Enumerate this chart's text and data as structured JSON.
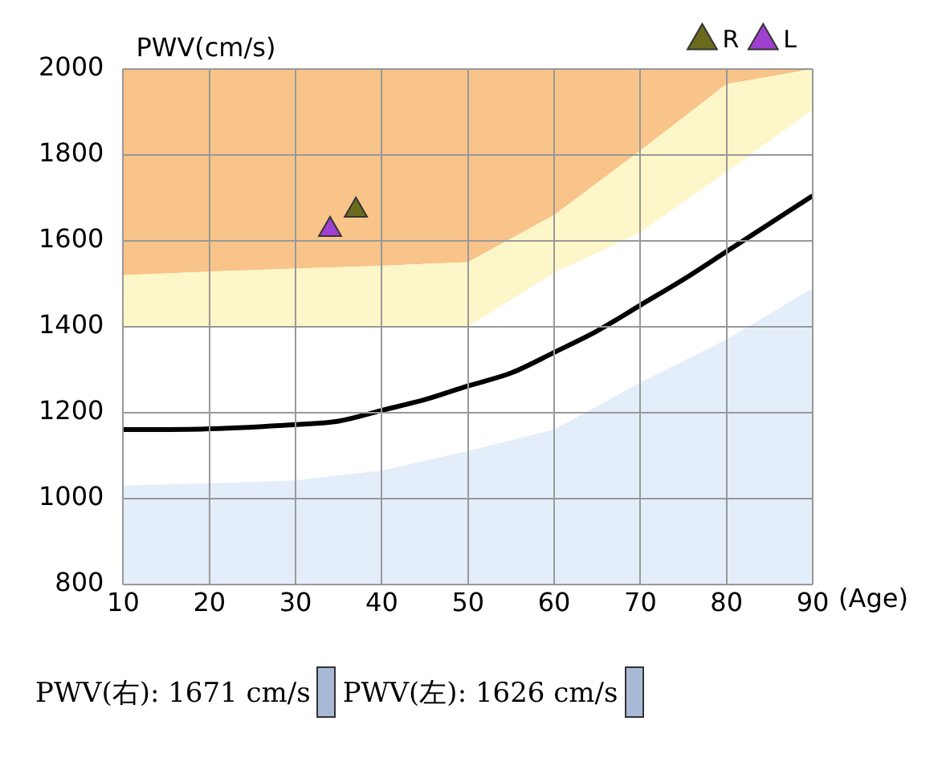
{
  "chart_data": {
    "type": "line",
    "xlabel": "(Age)",
    "ylabel": "PWV(cm/s)",
    "x": [
      10,
      20,
      30,
      35,
      40,
      45,
      50,
      55,
      60,
      65,
      70,
      75,
      80,
      85,
      90
    ],
    "xlim": [
      10,
      90
    ],
    "xticks": [
      10,
      20,
      30,
      40,
      50,
      60,
      70,
      80,
      90
    ],
    "ylim": [
      800,
      2000
    ],
    "yticks": [
      800,
      1000,
      1200,
      1400,
      1600,
      1800,
      2000
    ],
    "grid": true,
    "legend": "top right",
    "series": [
      {
        "type": "area",
        "color": "#f8c48a",
        "x": [
          10,
          20,
          30,
          40,
          50,
          60,
          70,
          80,
          90
        ],
        "values": [
          2000,
          2000,
          2000,
          2000,
          2000,
          2000,
          2000,
          2000,
          2000
        ]
      },
      {
        "type": "area",
        "color": "#fdf6c8",
        "x": [
          10,
          20,
          30,
          40,
          50,
          60,
          70,
          80,
          90
        ],
        "values": [
          1520,
          1528,
          1535,
          1542,
          1550,
          1660,
          1810,
          1965,
          2000
        ]
      },
      {
        "type": "area",
        "color": "#ffffff",
        "x": [
          10,
          20,
          30,
          40,
          50,
          60,
          70,
          80,
          90
        ],
        "values": [
          1400,
          1400,
          1400,
          1400,
          1400,
          1525,
          1620,
          1760,
          1905
        ]
      },
      {
        "type": "area",
        "color": "#e3eefa",
        "x": [
          10,
          20,
          30,
          40,
          50,
          60,
          70,
          80,
          90
        ],
        "values": [
          1030,
          1035,
          1042,
          1065,
          1110,
          1160,
          1270,
          1370,
          1490
        ]
      },
      {
        "color": "#000000",
        "values": [
          1160,
          1162,
          1172,
          1180,
          1205,
          1230,
          1262,
          1292,
          1340,
          1390,
          1450,
          1510,
          1575,
          1640,
          1705
        ]
      },
      {
        "type": "scatter",
        "name": "R",
        "color": "#6b6b1e",
        "marker": "triangle",
        "x": [
          37
        ],
        "values": [
          1671
        ]
      },
      {
        "type": "scatter",
        "name": "L",
        "color": "#a040d0",
        "marker": "triangle",
        "x": [
          34
        ],
        "values": [
          1626
        ]
      }
    ],
    "annotations": [
      "PWV(右): 1671 cm/s",
      "PWV(左): 1626 cm/s"
    ]
  }
}
